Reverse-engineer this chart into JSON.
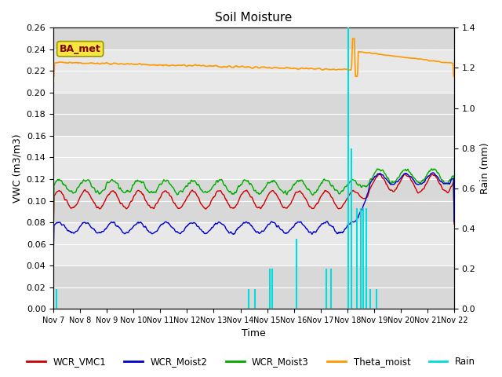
{
  "title": "Soil Moisture",
  "ylabel_left": "VWC (m3/m3)",
  "ylabel_right": "Rain (mm)",
  "xlabel": "Time",
  "annotation": "BA_met",
  "ylim_left": [
    0.0,
    0.26
  ],
  "ylim_right": [
    0.0,
    1.4
  ],
  "bg_color": "#e8e8e8",
  "bg_color2": "#d0d0d0",
  "line_colors": {
    "WCR_VMC1": "#cc0000",
    "WCR_Moist2": "#0000cc",
    "WCR_Moist3": "#00aa00",
    "Theta_moist": "#ff9900",
    "Rain": "#00dddd"
  },
  "legend_labels": [
    "WCR_VMC1",
    "WCR_Moist2",
    "WCR_Moist3",
    "Theta_moist",
    "Rain"
  ],
  "annotation_facecolor": "#f5e642",
  "annotation_edgecolor": "#999900",
  "annotation_textcolor": "#880000"
}
